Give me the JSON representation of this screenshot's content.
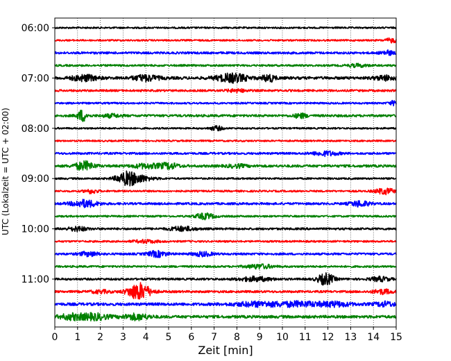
{
  "chart_data": {
    "type": "line",
    "xlabel": "Zeit  [min]",
    "ylabel": "UTC (Lokalzeit = UTC + 02:00)",
    "xlim": [
      0,
      15
    ],
    "x_ticks": [
      "0",
      "1",
      "2",
      "3",
      "4",
      "5",
      "6",
      "7",
      "8",
      "9",
      "10",
      "11",
      "12",
      "13",
      "14",
      "15"
    ],
    "y_ticks": [
      "06:00",
      "07:00",
      "08:00",
      "09:00",
      "10:00",
      "11:00"
    ],
    "grid": "vertical-dotted",
    "trace_colors": [
      "#000000",
      "#ff0000",
      "#0000ff",
      "#008000"
    ],
    "rows": [
      {
        "time": "06:00",
        "color": "#000000",
        "amp": 1.2,
        "events": []
      },
      {
        "time": "06:15",
        "color": "#ff0000",
        "amp": 1.2,
        "events": [
          [
            14.8,
            3,
            0.2
          ]
        ]
      },
      {
        "time": "06:30",
        "color": "#0000ff",
        "amp": 1.6,
        "events": [
          [
            14.6,
            3,
            0.2
          ]
        ]
      },
      {
        "time": "06:45",
        "color": "#008000",
        "amp": 1.4,
        "events": [
          [
            13.3,
            2,
            0.3
          ]
        ]
      },
      {
        "time": "07:00",
        "color": "#000000",
        "amp": 2.0,
        "events": [
          [
            1.3,
            4,
            0.4
          ],
          [
            4.0,
            4,
            0.4
          ],
          [
            7.5,
            3,
            0.4
          ],
          [
            8.0,
            4,
            0.4
          ],
          [
            9.4,
            5,
            0.2
          ],
          [
            14.5,
            3,
            0.3
          ]
        ]
      },
      {
        "time": "07:15",
        "color": "#ff0000",
        "amp": 1.5,
        "events": [
          [
            8.0,
            2,
            0.3
          ]
        ]
      },
      {
        "time": "07:30",
        "color": "#0000ff",
        "amp": 1.3,
        "events": [
          [
            14.9,
            3,
            0.15
          ]
        ]
      },
      {
        "time": "07:45",
        "color": "#008000",
        "amp": 1.7,
        "events": [
          [
            1.2,
            8,
            0.15
          ],
          [
            2.5,
            2,
            0.3
          ],
          [
            10.8,
            3,
            0.2
          ]
        ]
      },
      {
        "time": "08:00",
        "color": "#000000",
        "amp": 1.2,
        "events": [
          [
            7.1,
            3,
            0.2
          ]
        ]
      },
      {
        "time": "08:15",
        "color": "#ff0000",
        "amp": 1.2,
        "events": []
      },
      {
        "time": "08:30",
        "color": "#0000ff",
        "amp": 1.5,
        "events": [
          [
            11.9,
            3,
            0.4
          ]
        ]
      },
      {
        "time": "08:45",
        "color": "#008000",
        "amp": 1.8,
        "events": [
          [
            1.3,
            6,
            0.3
          ],
          [
            4.0,
            3,
            0.4
          ],
          [
            5.0,
            4,
            0.3
          ],
          [
            8.0,
            2,
            0.3
          ]
        ]
      },
      {
        "time": "09:00",
        "color": "#000000",
        "amp": 1.3,
        "events": [
          [
            3.2,
            9,
            0.35
          ],
          [
            3.8,
            3,
            0.4
          ]
        ]
      },
      {
        "time": "09:15",
        "color": "#ff0000",
        "amp": 1.3,
        "events": [
          [
            1.6,
            3,
            0.2
          ],
          [
            14.5,
            4,
            0.3
          ]
        ]
      },
      {
        "time": "09:30",
        "color": "#0000ff",
        "amp": 1.6,
        "events": [
          [
            1.3,
            5,
            0.4
          ],
          [
            13.4,
            4,
            0.3
          ]
        ]
      },
      {
        "time": "09:45",
        "color": "#008000",
        "amp": 1.3,
        "events": [
          [
            6.6,
            4,
            0.3
          ]
        ]
      },
      {
        "time": "10:00",
        "color": "#000000",
        "amp": 1.5,
        "events": [
          [
            1.0,
            3,
            0.3
          ],
          [
            5.6,
            3,
            0.4
          ]
        ]
      },
      {
        "time": "10:15",
        "color": "#ff0000",
        "amp": 1.3,
        "events": [
          [
            4.0,
            2,
            0.4
          ]
        ]
      },
      {
        "time": "10:30",
        "color": "#0000ff",
        "amp": 1.5,
        "events": [
          [
            4.5,
            4,
            0.3
          ],
          [
            6.5,
            3,
            0.3
          ],
          [
            1.5,
            3,
            0.3
          ]
        ]
      },
      {
        "time": "10:45",
        "color": "#008000",
        "amp": 1.4,
        "events": [
          [
            9.0,
            3,
            0.4
          ]
        ]
      },
      {
        "time": "11:00",
        "color": "#000000",
        "amp": 1.5,
        "events": [
          [
            8.8,
            3,
            0.5
          ],
          [
            11.9,
            8,
            0.25
          ],
          [
            14.3,
            3,
            0.3
          ]
        ]
      },
      {
        "time": "11:15",
        "color": "#ff0000",
        "amp": 1.6,
        "events": [
          [
            3.7,
            12,
            0.35
          ],
          [
            2.0,
            2,
            0.3
          ],
          [
            14.4,
            3,
            0.3
          ]
        ]
      },
      {
        "time": "11:30",
        "color": "#0000ff",
        "amp": 2.0,
        "events": [
          [
            9.0,
            3,
            0.8
          ],
          [
            10.8,
            3,
            0.6
          ],
          [
            12.3,
            3,
            0.5
          ],
          [
            14.5,
            3,
            0.3
          ]
        ]
      },
      {
        "time": "11:45",
        "color": "#008000",
        "amp": 2.0,
        "events": [
          [
            0.8,
            4,
            0.4
          ],
          [
            1.8,
            4,
            0.4
          ],
          [
            3.6,
            4,
            0.4
          ]
        ]
      }
    ]
  }
}
